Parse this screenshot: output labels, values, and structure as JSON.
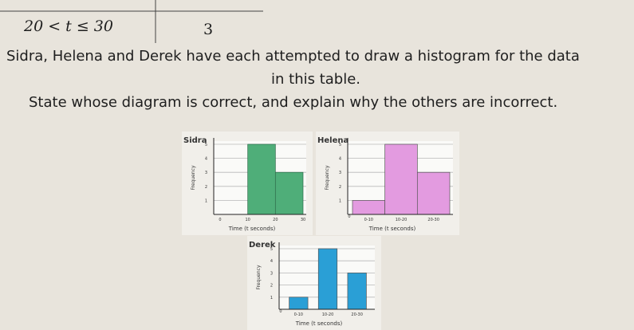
{
  "table_row": {
    "interval": "20 < t ≤ 30",
    "frequency": "3"
  },
  "question": {
    "line1": "Sidra, Helena and Derek have each attempted to draw a histogram for the data",
    "line2": "in this table.",
    "line3": "State whose diagram is correct, and explain why the others are incorrect."
  },
  "charts": [
    {
      "type": "histogram",
      "name": "Sidra",
      "y_label": "Frequency",
      "x_label": "Time (t seconds)",
      "color": "#4fae79",
      "bins": [
        10,
        20,
        30
      ],
      "values": [
        5,
        3
      ],
      "xlim": [
        0,
        30
      ],
      "xticks": [
        0,
        10,
        20,
        30
      ],
      "ylim": [
        0,
        5
      ],
      "yticks": [
        1,
        2,
        3,
        4,
        5
      ],
      "grid": true
    },
    {
      "type": "bar",
      "name": "Helena",
      "y_label": "Frequency",
      "x_label": "Time (t seconds)",
      "color": "#e39be0",
      "categories": [
        "0-10",
        "10-20",
        "20-30"
      ],
      "values": [
        1,
        5,
        3
      ],
      "origin_label": "0",
      "ylim": [
        0,
        5
      ],
      "yticks": [
        1,
        2,
        3,
        4,
        5
      ],
      "grid": true,
      "bar_gaps": false
    },
    {
      "type": "bar",
      "name": "Derek",
      "y_label": "Frequency",
      "x_label": "Time (t seconds)",
      "color": "#2a9fd6",
      "categories": [
        "0-10",
        "10-20",
        "20-30"
      ],
      "values": [
        1,
        5,
        3
      ],
      "origin_label": "0",
      "ylim": [
        0,
        5
      ],
      "yticks": [
        1,
        2,
        3,
        4,
        5
      ],
      "grid": true,
      "bar_gaps": true
    }
  ]
}
